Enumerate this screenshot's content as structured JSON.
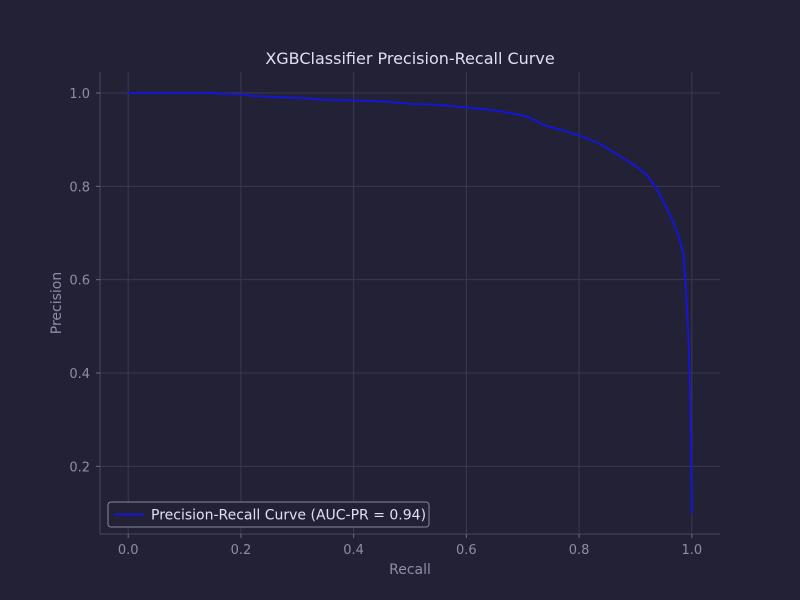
{
  "chart_data": {
    "type": "line",
    "title": "XGBClassifier Precision-Recall Curve",
    "xlabel": "Recall",
    "ylabel": "Precision",
    "xlim": [
      -0.05,
      1.05
    ],
    "ylim": [
      0.055,
      1.045
    ],
    "xticks": [
      0.0,
      0.2,
      0.4,
      0.6,
      0.8,
      1.0
    ],
    "xtick_labels": [
      "0.0",
      "0.2",
      "0.4",
      "0.6",
      "0.8",
      "1.0"
    ],
    "yticks": [
      0.2,
      0.4,
      0.6,
      0.8,
      1.0
    ],
    "ytick_labels": [
      "0.2",
      "0.4",
      "0.6",
      "0.8",
      "1.0"
    ],
    "grid": true,
    "legend_position": "lower-left",
    "background_color": "#232136",
    "series": [
      {
        "name": "Precision-Recall Curve (AUC-PR = 0.94)",
        "color": "#1515d6",
        "x": [
          0.0,
          0.05,
          0.1,
          0.15,
          0.17,
          0.2,
          0.23,
          0.27,
          0.3,
          0.33,
          0.36,
          0.4,
          0.45,
          0.5,
          0.55,
          0.6,
          0.65,
          0.7,
          0.72,
          0.74,
          0.77,
          0.8,
          0.83,
          0.85,
          0.88,
          0.9,
          0.92,
          0.94,
          0.96,
          0.975,
          0.985,
          0.99,
          0.995,
          0.998,
          1.0,
          1.0
        ],
        "y": [
          1.0,
          1.0,
          1.0,
          1.0,
          0.998,
          0.997,
          0.993,
          0.991,
          0.99,
          0.987,
          0.985,
          0.984,
          0.982,
          0.977,
          0.975,
          0.969,
          0.963,
          0.952,
          0.943,
          0.93,
          0.92,
          0.909,
          0.895,
          0.882,
          0.859,
          0.844,
          0.825,
          0.79,
          0.742,
          0.7,
          0.655,
          0.57,
          0.45,
          0.28,
          0.15,
          0.1
        ]
      }
    ]
  }
}
